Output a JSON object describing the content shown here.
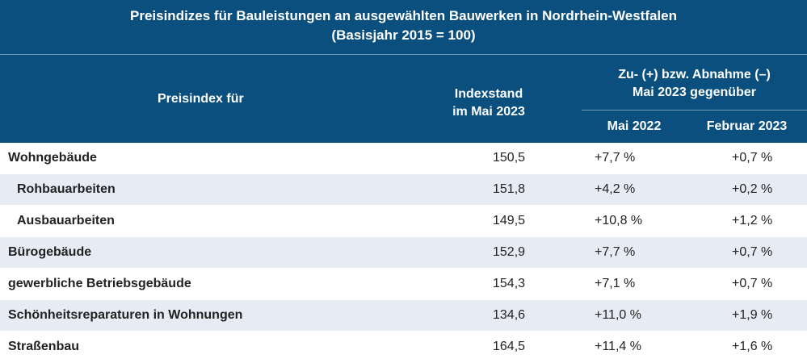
{
  "title": {
    "line1": "Preisindizes für Bauleistungen an ausgewählten Bauwerken in Nordrhein-Westfalen",
    "line2": "(Basisjahr 2015 = 100)"
  },
  "header": {
    "col1": "Preisindex für ",
    "col2_line1": "Indexstand",
    "col2_line2": "im Mai 2023",
    "group_line1": "Zu- (+) bzw. Abnahme (–)",
    "group_line2": "Mai 2023 gegenüber",
    "col3": "Mai 2022",
    "col4": "Februar 2023"
  },
  "rows": [
    {
      "label": "Wohngebäude",
      "index": "150,5",
      "vs_may": "+7,7 %",
      "vs_feb": "+0,7 %"
    },
    {
      "label": "Rohbauarbeiten",
      "index": "151,8",
      "vs_may": "+4,2 %",
      "vs_feb": "+0,2 %"
    },
    {
      "label": "Ausbauarbeiten",
      "index": "149,5",
      "vs_may": "+10,8 %",
      "vs_feb": "+1,2 %"
    },
    {
      "label": "Bürogebäude",
      "index": "152,9",
      "vs_may": "+7,7 %",
      "vs_feb": "+0,7 %"
    },
    {
      "label": "gewerbliche Betriebsgebäude",
      "index": "154,3",
      "vs_may": "+7,1 %",
      "vs_feb": "+0,7 %"
    },
    {
      "label": "Schönheitsreparaturen in Wohnungen",
      "index": "134,6",
      "vs_may": "+11,0 %",
      "vs_feb": "+1,9 %"
    },
    {
      "label": "Straßenbau",
      "index": "164,5",
      "vs_may": "+11,4 %",
      "vs_feb": "+1,6 %"
    }
  ]
}
